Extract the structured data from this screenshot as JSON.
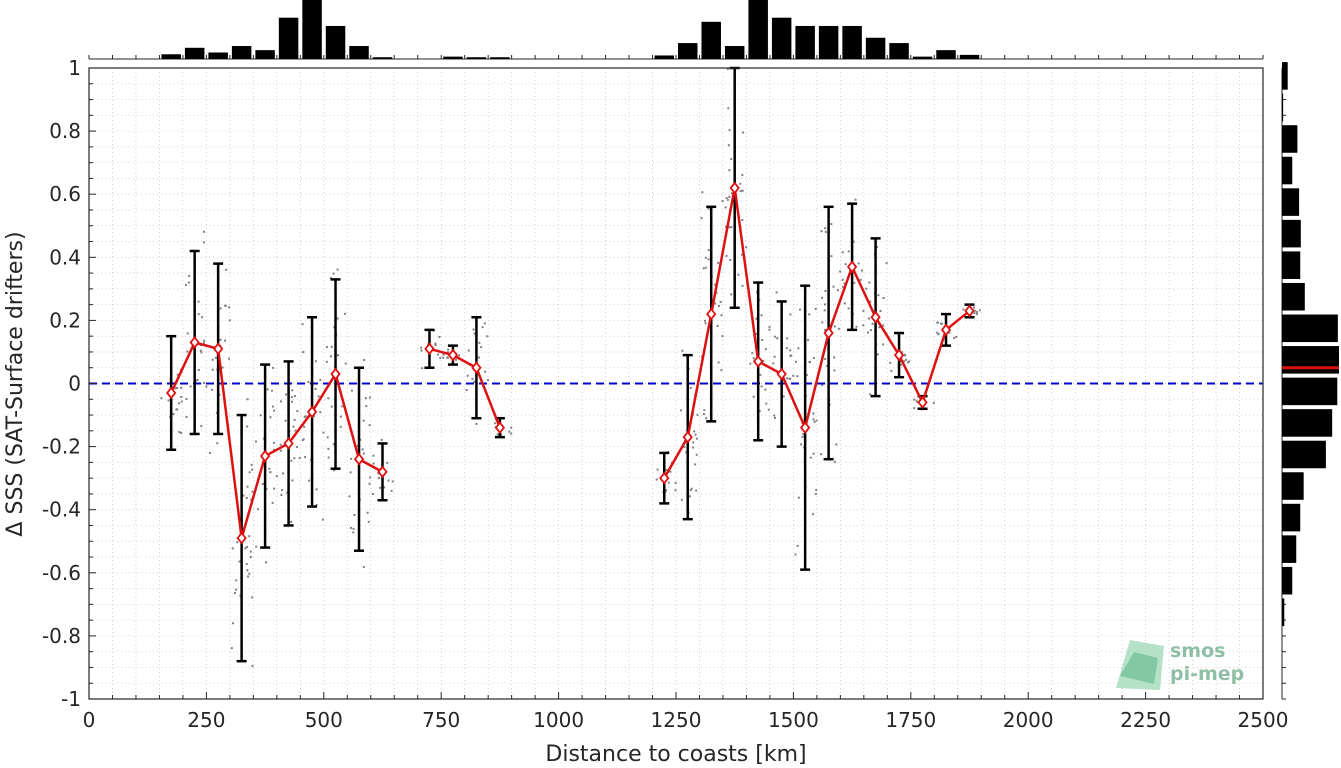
{
  "chart_data": {
    "type": "scatter",
    "xlabel": "Distance to coasts [km]",
    "ylabel": "Δ SSS (SAT-Surface drifters)",
    "xlim": [
      0,
      2500
    ],
    "ylim": [
      -1,
      1
    ],
    "x_ticks": [
      0,
      250,
      500,
      750,
      1000,
      1250,
      1500,
      1750,
      2000,
      2250,
      2500
    ],
    "y_ticks": [
      -1,
      -0.8,
      -0.6,
      -0.4,
      -0.2,
      0,
      0.2,
      0.4,
      0.6,
      0.8,
      1
    ],
    "y_tick_labels": [
      "-1",
      "-0.8",
      "-0.6",
      "-0.4",
      "-0.2",
      "0",
      "0.2",
      "0.4",
      "0.6",
      "0.8",
      "1"
    ],
    "grid": true,
    "reference_line": {
      "y": 0,
      "style": "dashed",
      "color": "#0000cc"
    },
    "colors": {
      "mean_line": "#dd1111",
      "error_bars": "#000000",
      "scatter": "#808080",
      "histogram": "#000000"
    },
    "binned_means": {
      "x": [
        175,
        225,
        275,
        325,
        375,
        425,
        475,
        525,
        575,
        625,
        725,
        775,
        825,
        875,
        1225,
        1275,
        1325,
        1375,
        1425,
        1475,
        1525,
        1575,
        1625,
        1675,
        1725,
        1775,
        1825,
        1875
      ],
      "mean": [
        -0.03,
        0.13,
        0.11,
        -0.49,
        -0.23,
        -0.19,
        -0.09,
        0.03,
        -0.24,
        -0.28,
        0.11,
        0.09,
        0.05,
        -0.14,
        -0.3,
        -0.17,
        0.22,
        0.62,
        0.07,
        0.03,
        -0.14,
        0.16,
        0.37,
        0.21,
        0.09,
        -0.06,
        0.17,
        0.23
      ],
      "std": [
        0.18,
        0.29,
        0.27,
        0.39,
        0.29,
        0.26,
        0.3,
        0.3,
        0.29,
        0.09,
        0.06,
        0.03,
        0.16,
        0.03,
        0.08,
        0.26,
        0.34,
        0.38,
        0.25,
        0.23,
        0.45,
        0.4,
        0.2,
        0.25,
        0.07,
        0.02,
        0.05,
        0.02
      ]
    },
    "x_histogram": {
      "bin_width": 50,
      "bin_centers": [
        175,
        225,
        275,
        325,
        375,
        425,
        475,
        525,
        575,
        625,
        775,
        825,
        875,
        1225,
        1275,
        1325,
        1375,
        1425,
        1475,
        1525,
        1575,
        1625,
        1675,
        1725,
        1775,
        1825,
        1875
      ],
      "relative_counts": [
        0.08,
        0.19,
        0.11,
        0.22,
        0.15,
        0.7,
        1.0,
        0.56,
        0.22,
        0.03,
        0.04,
        0.03,
        0.03,
        0.06,
        0.27,
        0.63,
        0.22,
        1.0,
        0.7,
        0.56,
        0.56,
        0.56,
        0.36,
        0.27,
        0.04,
        0.15,
        0.07
      ]
    },
    "y_histogram": {
      "bin_width": 0.1,
      "bin_centers": [
        0.975,
        0.875,
        0.775,
        0.675,
        0.575,
        0.475,
        0.375,
        0.275,
        0.175,
        0.075,
        -0.025,
        -0.125,
        -0.225,
        -0.325,
        -0.425,
        -0.525,
        -0.625,
        -0.725,
        -0.825
      ],
      "relative_counts": [
        0.1,
        0.02,
        0.27,
        0.18,
        0.3,
        0.33,
        0.32,
        0.4,
        0.98,
        1.0,
        0.97,
        0.88,
        0.77,
        0.38,
        0.32,
        0.25,
        0.18,
        0.04,
        0.0
      ],
      "mean_marker": 0.05
    }
  },
  "logo": {
    "line1": "smos",
    "line2": "pi-mep"
  }
}
